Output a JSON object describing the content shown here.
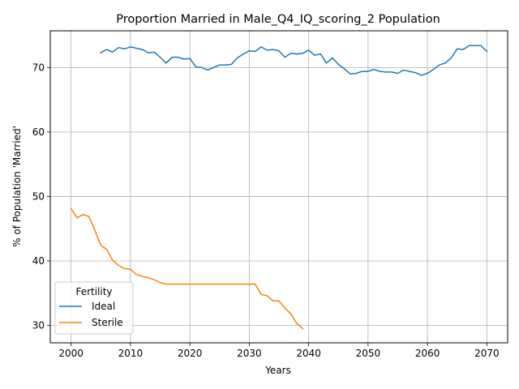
{
  "chart_data": {
    "type": "line",
    "title": "Proportion Married in Male_Q4_IQ_scoring_2 Population",
    "xlabel": "Years",
    "ylabel": "% of Population 'Married'",
    "xlim": [
      1996.5,
      2073.5
    ],
    "ylim": [
      27.3,
      75.7
    ],
    "xticks": [
      2000,
      2010,
      2020,
      2030,
      2040,
      2050,
      2060,
      2070
    ],
    "yticks": [
      30,
      40,
      50,
      60,
      70
    ],
    "grid": true,
    "legend": {
      "title": "Fertility",
      "placement": "lower-left"
    },
    "series": [
      {
        "name": "Ideal",
        "color": "#1f77b4",
        "x": [
          2005,
          2006,
          2007,
          2008,
          2009,
          2010,
          2011,
          2012,
          2013,
          2014,
          2015,
          2016,
          2017,
          2018,
          2019,
          2020,
          2021,
          2022,
          2023,
          2024,
          2025,
          2026,
          2027,
          2028,
          2029,
          2030,
          2031,
          2032,
          2033,
          2034,
          2035,
          2036,
          2037,
          2038,
          2039,
          2040,
          2041,
          2042,
          2043,
          2044,
          2045,
          2046,
          2047,
          2048,
          2049,
          2050,
          2051,
          2052,
          2053,
          2054,
          2055,
          2056,
          2057,
          2058,
          2059,
          2060,
          2061,
          2062,
          2063,
          2064,
          2065,
          2066,
          2067,
          2068,
          2069,
          2070
        ],
        "values": [
          72.3,
          72.8,
          72.4,
          73.1,
          72.9,
          73.2,
          73.0,
          72.8,
          72.3,
          72.4,
          71.6,
          70.7,
          71.6,
          71.6,
          71.3,
          71.4,
          70.1,
          70.0,
          69.6,
          70.0,
          70.4,
          70.4,
          70.5,
          71.5,
          72.1,
          72.6,
          72.5,
          73.2,
          72.7,
          72.8,
          72.6,
          71.6,
          72.2,
          72.1,
          72.2,
          72.7,
          71.9,
          72.1,
          70.7,
          71.5,
          70.5,
          69.8,
          69.0,
          69.1,
          69.4,
          69.4,
          69.7,
          69.4,
          69.3,
          69.3,
          69.1,
          69.6,
          69.4,
          69.2,
          68.8,
          69.1,
          69.7,
          70.4,
          70.7,
          71.5,
          72.9,
          72.8,
          73.4,
          73.4,
          73.4,
          72.5
        ]
      },
      {
        "name": "Sterile",
        "color": "#ff7f0e",
        "x": [
          2000,
          2001,
          2002,
          2003,
          2004,
          2005,
          2006,
          2007,
          2008,
          2009,
          2010,
          2011,
          2012,
          2013,
          2014,
          2015,
          2016,
          2017,
          2018,
          2019,
          2020,
          2021,
          2022,
          2023,
          2024,
          2025,
          2026,
          2027,
          2028,
          2029,
          2030,
          2031,
          2032,
          2033,
          2034,
          2035,
          2036,
          2037,
          2038,
          2039
        ],
        "values": [
          48.1,
          46.7,
          47.2,
          46.9,
          44.8,
          42.4,
          41.8,
          40.1,
          39.3,
          38.8,
          38.7,
          37.9,
          37.6,
          37.4,
          37.1,
          36.6,
          36.4,
          36.4,
          36.4,
          36.4,
          36.4,
          36.4,
          36.4,
          36.4,
          36.4,
          36.4,
          36.4,
          36.4,
          36.4,
          36.4,
          36.4,
          36.4,
          34.8,
          34.6,
          33.8,
          33.8,
          32.7,
          31.8,
          30.3,
          29.5
        ]
      }
    ]
  }
}
